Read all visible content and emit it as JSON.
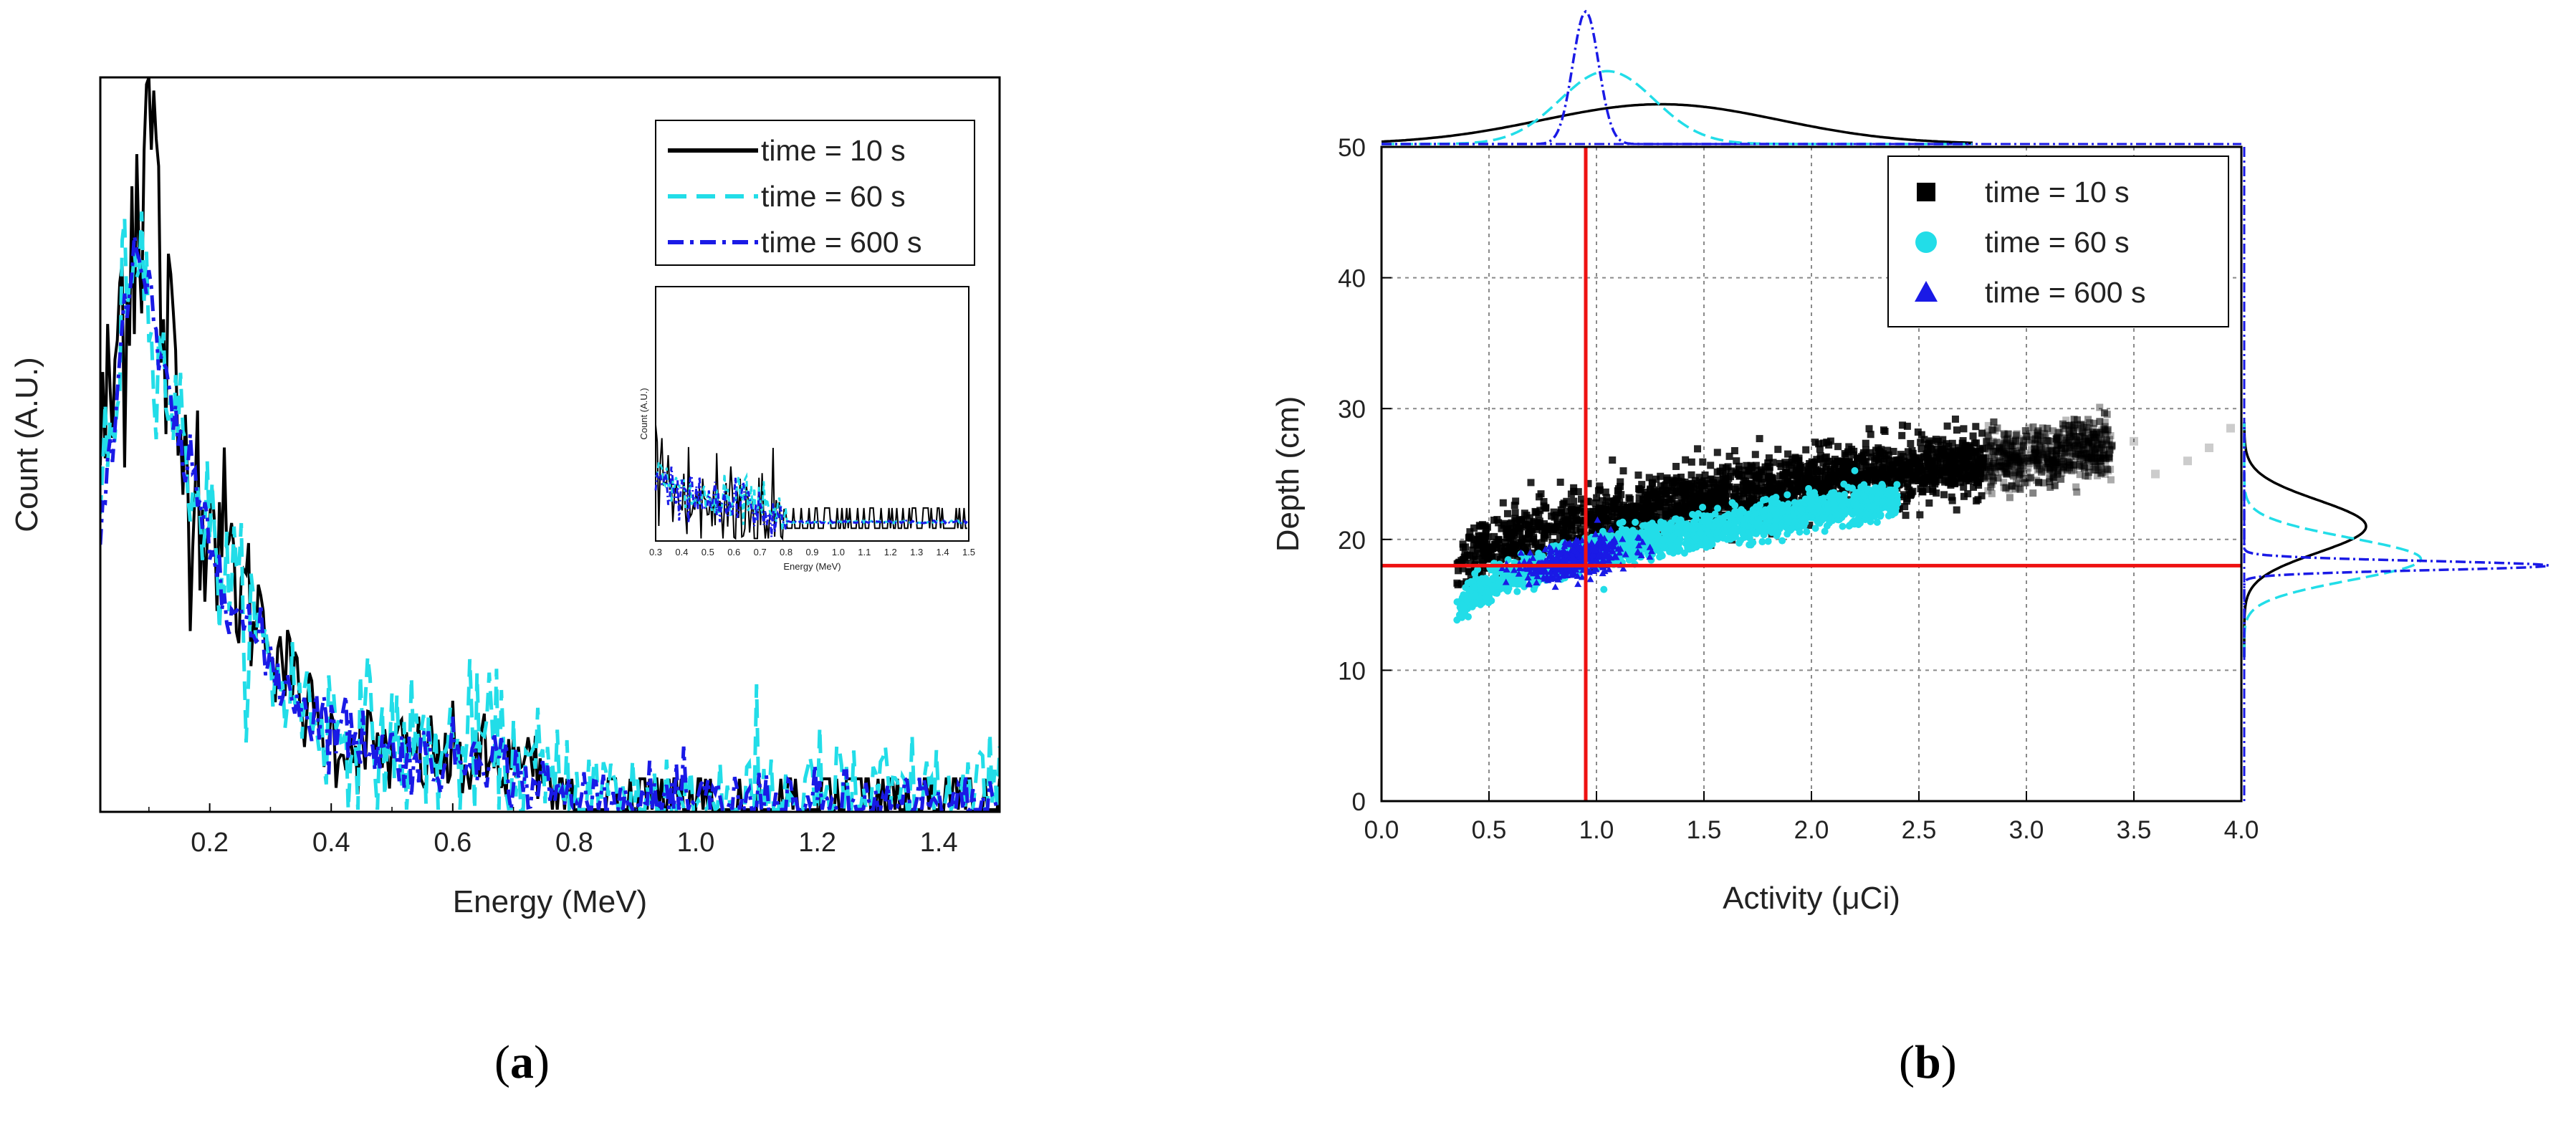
{
  "colors": {
    "black": "#000000",
    "cyan": "#22dde8",
    "blue": "#1a1ae6",
    "red": "#ee1111",
    "grid": "#8a8a8a"
  },
  "chart_data": [
    {
      "id": "a",
      "type": "line",
      "caption": "a",
      "xlabel": "Energy (MeV)",
      "ylabel": "Count (A.U.)",
      "xlim": [
        0.02,
        1.5
      ],
      "ylim": [
        0,
        1.0
      ],
      "xticks": [
        "0.2",
        "0.4",
        "0.6",
        "0.8",
        "1.0",
        "1.2",
        "1.4"
      ],
      "legend_position": "top-right",
      "series": [
        {
          "name": "time = 10 s",
          "color": "#000000",
          "dash": "solid",
          "x": [
            0.02,
            0.04,
            0.06,
            0.08,
            0.1,
            0.12,
            0.15,
            0.2,
            0.25,
            0.3,
            0.35,
            0.4,
            0.5,
            0.6,
            0.7,
            0.8,
            0.9,
            1.0,
            1.1,
            1.2,
            1.3,
            1.4,
            1.5
          ],
          "y": [
            0.5,
            0.55,
            0.75,
            0.85,
            1.0,
            0.7,
            0.5,
            0.42,
            0.3,
            0.25,
            0.15,
            0.1,
            0.08,
            0.07,
            0.06,
            0.03,
            0.03,
            0.03,
            0.02,
            0.02,
            0.02,
            0.02,
            0.01
          ]
        },
        {
          "name": "time = 60 s",
          "color": "#22dde8",
          "dash": "dashed",
          "x": [
            0.02,
            0.04,
            0.06,
            0.08,
            0.1,
            0.12,
            0.15,
            0.2,
            0.25,
            0.3,
            0.35,
            0.4,
            0.5,
            0.6,
            0.65,
            0.7,
            0.8,
            0.9,
            1.0,
            1.1,
            1.2,
            1.3,
            1.4,
            1.5
          ],
          "y": [
            0.45,
            0.5,
            0.72,
            0.8,
            0.7,
            0.62,
            0.52,
            0.38,
            0.28,
            0.2,
            0.15,
            0.12,
            0.09,
            0.08,
            0.1,
            0.06,
            0.02,
            0.01,
            0.01,
            0.01,
            0.01,
            0.01,
            0.01,
            0.0
          ]
        },
        {
          "name": "time = 600 s",
          "color": "#1a1ae6",
          "dash": "dash-dot",
          "x": [
            0.02,
            0.04,
            0.06,
            0.08,
            0.1,
            0.12,
            0.15,
            0.2,
            0.25,
            0.3,
            0.35,
            0.4,
            0.5,
            0.6,
            0.65,
            0.7,
            0.8,
            0.9,
            1.0,
            1.1,
            1.2,
            1.3,
            1.4,
            1.5
          ],
          "y": [
            0.43,
            0.5,
            0.7,
            0.77,
            0.7,
            0.6,
            0.5,
            0.37,
            0.27,
            0.2,
            0.15,
            0.12,
            0.08,
            0.07,
            0.09,
            0.05,
            0.015,
            0.01,
            0.01,
            0.01,
            0.005,
            0.005,
            0.005,
            0.0
          ]
        }
      ],
      "inset": {
        "xlabel": "Energy (MeV)",
        "ylabel": "Count (A.U.)",
        "xticks": [
          "0.3",
          "0.4",
          "0.5",
          "0.6",
          "0.7",
          "0.8",
          "0.9",
          "1.0",
          "1.1",
          "1.2",
          "1.3",
          "1.4",
          "1.5"
        ]
      }
    },
    {
      "id": "b",
      "type": "scatter",
      "caption": "b",
      "xlabel": "Activity (μCi)",
      "ylabel": "Depth (cm)",
      "xlim": [
        0.0,
        4.0
      ],
      "ylim": [
        0,
        50
      ],
      "xticks": [
        "0.0",
        "0.5",
        "1.0",
        "1.5",
        "2.0",
        "2.5",
        "3.0",
        "3.5",
        "4.0"
      ],
      "yticks": [
        "0",
        "10",
        "20",
        "30",
        "40",
        "50"
      ],
      "grid": true,
      "legend_position": "top-right",
      "reference_lines": {
        "x": 0.95,
        "y": 18
      },
      "series": [
        {
          "name": "time = 10 s",
          "color": "#000000",
          "marker": "square",
          "x_range": [
            0.35,
            3.4
          ],
          "y_at_start": 17,
          "y_at_end": 27,
          "spread": 2.6,
          "outliers": [
            [
              3.6,
              25
            ],
            [
              3.75,
              26
            ],
            [
              3.85,
              27
            ],
            [
              3.95,
              28.5
            ],
            [
              3.5,
              27.5
            ]
          ]
        },
        {
          "name": "time = 60 s",
          "color": "#22dde8",
          "marker": "circle",
          "x_range": [
            0.35,
            2.4
          ],
          "y_at_start": 14,
          "y_at_end": 23,
          "spread": 1.4
        },
        {
          "name": "time = 600 s",
          "color": "#1a1ae6",
          "marker": "triangle",
          "center": [
            0.9,
            18.5
          ],
          "spread_x": 0.12,
          "spread_y": 0.7
        }
      ],
      "marginal_top": [
        {
          "series": "time = 10 s",
          "peak_x": 1.3,
          "sigma": 0.55,
          "height": 0.3
        },
        {
          "series": "time = 60 s",
          "peak_x": 1.05,
          "sigma": 0.22,
          "height": 0.55
        },
        {
          "series": "time = 600 s",
          "peak_x": 0.95,
          "sigma": 0.06,
          "height": 1.0
        }
      ],
      "marginal_right": [
        {
          "series": "time = 10 s",
          "peak_y": 21,
          "sigma": 2.0,
          "height": 0.4
        },
        {
          "series": "time = 60 s",
          "peak_y": 18.5,
          "sigma": 1.6,
          "height": 0.58
        },
        {
          "series": "time = 600 s",
          "peak_y": 18,
          "sigma": 0.35,
          "height": 1.0
        }
      ]
    }
  ]
}
